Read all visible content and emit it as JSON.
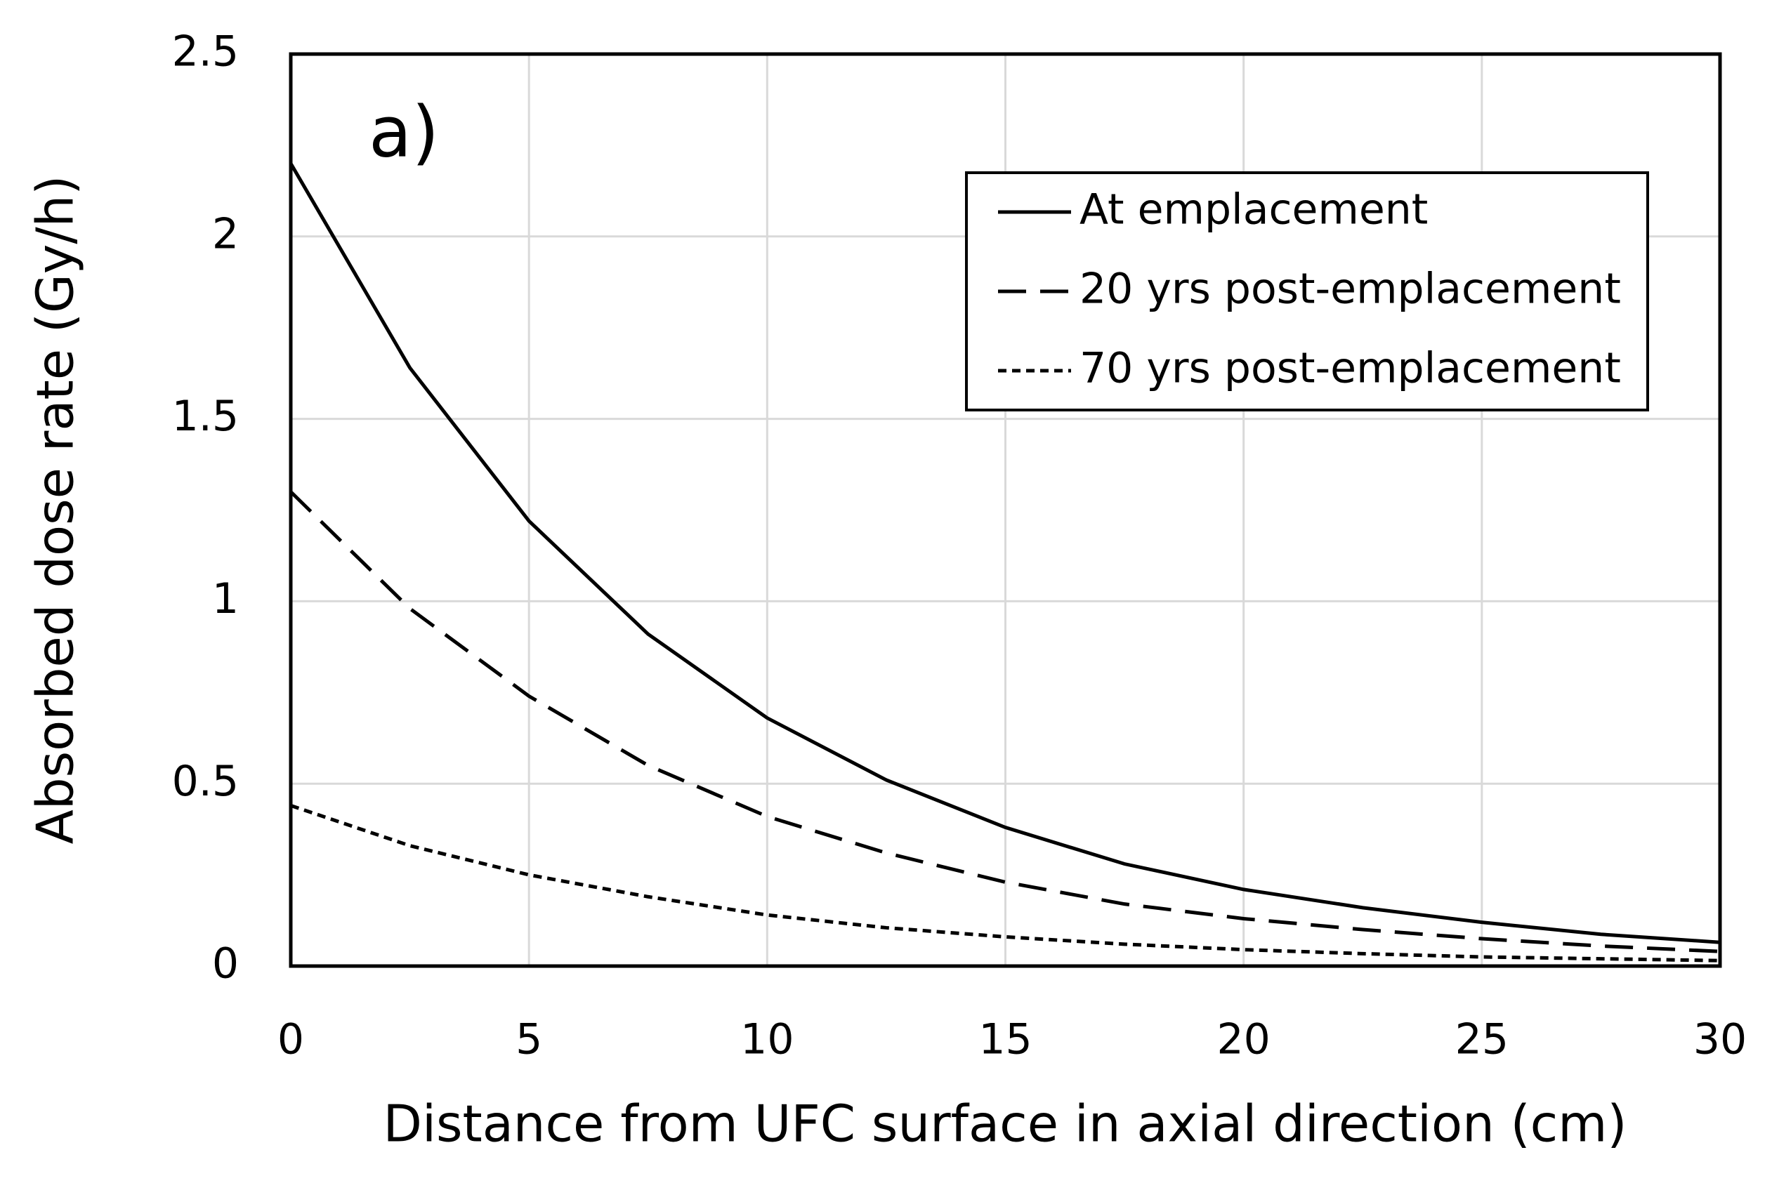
{
  "chart_data": {
    "type": "line",
    "annotation": "a)",
    "x_label": "Distance from UFC surface in axial direction (cm)",
    "y_label": "Absorbed dose rate (Gy/h)",
    "x": [
      0,
      2.5,
      5,
      7.5,
      10,
      12.5,
      15,
      17.5,
      20,
      22.5,
      25,
      27.5,
      30
    ],
    "series": [
      {
        "name": "At emplacement",
        "color": "#000000",
        "dash": "solid",
        "values": [
          2.2,
          1.64,
          1.22,
          0.91,
          0.68,
          0.51,
          0.38,
          0.28,
          0.21,
          0.16,
          0.12,
          0.087,
          0.065
        ]
      },
      {
        "name": "20 yrs post-emplacement",
        "color": "#000000",
        "dash": "dashed",
        "values": [
          1.3,
          0.98,
          0.74,
          0.55,
          0.41,
          0.31,
          0.23,
          0.17,
          0.13,
          0.1,
          0.075,
          0.055,
          0.04
        ]
      },
      {
        "name": "70 yrs post-emplacement",
        "color": "#000000",
        "dash": "dotted",
        "values": [
          0.44,
          0.33,
          0.25,
          0.19,
          0.14,
          0.105,
          0.08,
          0.06,
          0.045,
          0.034,
          0.025,
          0.02,
          0.015
        ]
      }
    ],
    "xlim": [
      0,
      30
    ],
    "xticks": [
      0,
      5,
      10,
      15,
      20,
      25,
      30
    ],
    "ylim": [
      0,
      2.5
    ],
    "yticks": [
      0,
      0.5,
      1,
      1.5,
      2,
      2.5
    ],
    "grid": true,
    "legend": "upper right"
  }
}
